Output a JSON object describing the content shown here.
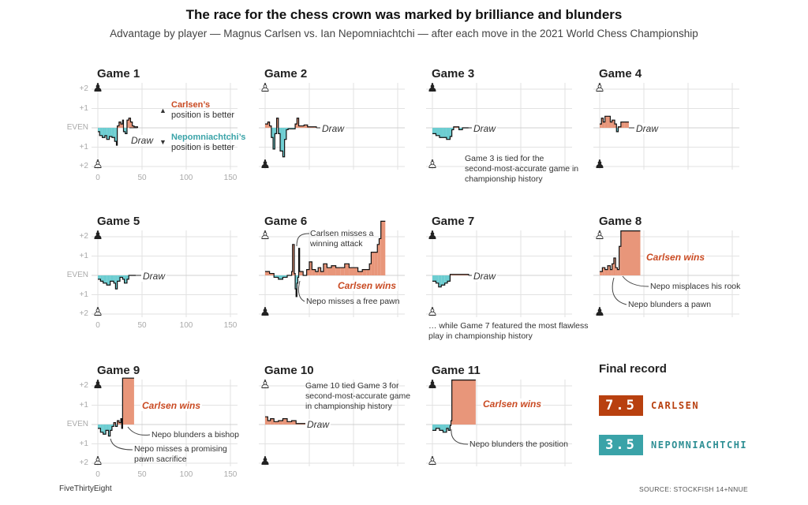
{
  "title": "The race for the chess crown was marked by brilliance and blunders",
  "subtitle": "Advantage by player — Magnus Carlsen vs. Ian Nepomniachtchi — after each move in the 2021 World Chess Championship",
  "legend": {
    "carlsen_name": "Carlsen’s",
    "carlsen_text": "position is better",
    "nepo_name": "Nepomniachtchi’s",
    "nepo_text": "position is better",
    "up_icon": "triangle-up-icon",
    "down_icon": "triangle-down-icon"
  },
  "colors": {
    "carlsen": "#e8967a",
    "carlsen_text": "#c94a22",
    "nepo": "#6ccdd1",
    "nepo_text": "#3aa3a8",
    "record_carlsen": "#b8400f",
    "record_nepo": "#3aa3a8"
  },
  "axis": {
    "y_ticks": [
      "+2",
      "+1",
      "EVEN",
      "+1",
      "+2"
    ],
    "x_ticks": [
      "0",
      "50",
      "100",
      "150"
    ]
  },
  "chart_data": {
    "type": "area",
    "xlabel": "",
    "ylabel": "",
    "xlim": [
      0,
      158
    ],
    "ylim": [
      -2,
      2
    ],
    "grid": true,
    "games": [
      {
        "title": "Game 1",
        "top_pawn": "black",
        "result": "Draw",
        "values": [
          [
            0,
            -0.2
          ],
          [
            2,
            -0.4
          ],
          [
            5,
            -0.5
          ],
          [
            8,
            -0.4
          ],
          [
            10,
            -0.6
          ],
          [
            13,
            -0.45
          ],
          [
            16,
            -0.5
          ],
          [
            19,
            -0.7
          ],
          [
            21,
            -0.9
          ],
          [
            22,
            0.1
          ],
          [
            24,
            0.3
          ],
          [
            26,
            0.2
          ],
          [
            28,
            0.4
          ],
          [
            29,
            -0.2
          ],
          [
            31,
            -0.3
          ],
          [
            33,
            0.4
          ],
          [
            35,
            0.5
          ],
          [
            37,
            0.3
          ],
          [
            39,
            0.1
          ],
          [
            41,
            0.05
          ],
          [
            45,
            0
          ]
        ]
      },
      {
        "title": "Game 2",
        "top_pawn": "white",
        "result": "Draw",
        "values": [
          [
            0,
            0.2
          ],
          [
            3,
            0.3
          ],
          [
            5,
            0.1
          ],
          [
            7,
            -0.5
          ],
          [
            9,
            -1.1
          ],
          [
            11,
            -0.3
          ],
          [
            13,
            0.5
          ],
          [
            15,
            -0.3
          ],
          [
            17,
            -1.2
          ],
          [
            20,
            -1.5
          ],
          [
            22,
            -0.6
          ],
          [
            24,
            -0.1
          ],
          [
            26,
            -0.05
          ],
          [
            34,
            0.2
          ],
          [
            36,
            0.5
          ],
          [
            38,
            0.1
          ],
          [
            44,
            0.15
          ],
          [
            48,
            0.05
          ],
          [
            58,
            0
          ]
        ]
      },
      {
        "title": "Game 3",
        "top_pawn": "black",
        "result": "Draw",
        "note": "Game 3 is tied for the\nsecond-most-accurate game in\nchampionship history",
        "values": [
          [
            0,
            -0.3
          ],
          [
            4,
            -0.4
          ],
          [
            8,
            -0.5
          ],
          [
            12,
            -0.5
          ],
          [
            16,
            -0.6
          ],
          [
            20,
            -0.45
          ],
          [
            22,
            -0.1
          ],
          [
            24,
            0.05
          ],
          [
            27,
            0.05
          ],
          [
            30,
            -0.1
          ],
          [
            34,
            0
          ],
          [
            41,
            0
          ]
        ]
      },
      {
        "title": "Game 4",
        "top_pawn": "white",
        "result": "Draw",
        "values": [
          [
            0,
            0.2
          ],
          [
            2,
            0.5
          ],
          [
            4,
            0.3
          ],
          [
            6,
            0.6
          ],
          [
            9,
            0.6
          ],
          [
            12,
            0.3
          ],
          [
            14,
            0.4
          ],
          [
            17,
            0.2
          ],
          [
            19,
            -0.2
          ],
          [
            21,
            0.05
          ],
          [
            24,
            0.3
          ],
          [
            28,
            0.3
          ],
          [
            33,
            0.3
          ]
        ]
      },
      {
        "title": "Game 5",
        "top_pawn": "black",
        "result": "Draw",
        "values": [
          [
            0,
            -0.2
          ],
          [
            3,
            -0.3
          ],
          [
            6,
            -0.4
          ],
          [
            10,
            -0.5
          ],
          [
            14,
            -0.3
          ],
          [
            18,
            -0.4
          ],
          [
            20,
            -0.7
          ],
          [
            22,
            -0.3
          ],
          [
            25,
            -0.1
          ],
          [
            28,
            -0.2
          ],
          [
            30,
            -0.4
          ],
          [
            33,
            -0.2
          ],
          [
            35,
            0
          ],
          [
            43,
            0
          ]
        ]
      },
      {
        "title": "Game 6",
        "top_pawn": "white",
        "result": "Carlsen wins",
        "note_a": "Carlsen misses a\nwinning attack",
        "note_b": "Nepo misses a free pawn",
        "values": [
          [
            0,
            0.2
          ],
          [
            5,
            0.1
          ],
          [
            10,
            -0.1
          ],
          [
            15,
            -0.2
          ],
          [
            20,
            -0.1
          ],
          [
            25,
            0
          ],
          [
            30,
            0.2
          ],
          [
            31,
            1.6
          ],
          [
            33,
            0.1
          ],
          [
            34,
            -0.7
          ],
          [
            35,
            -1.1
          ],
          [
            36,
            -0.4
          ],
          [
            37,
            -0.1
          ],
          [
            38,
            1.4
          ],
          [
            39,
            0.2
          ],
          [
            43,
            0
          ],
          [
            47,
            0.3
          ],
          [
            50,
            0.7
          ],
          [
            53,
            0.3
          ],
          [
            57,
            0.2
          ],
          [
            60,
            0.4
          ],
          [
            63,
            0.2
          ],
          [
            66,
            0.6
          ],
          [
            70,
            0.4
          ],
          [
            75,
            0.5
          ],
          [
            80,
            0.4
          ],
          [
            85,
            0.4
          ],
          [
            90,
            0.6
          ],
          [
            95,
            0.4
          ],
          [
            100,
            0.4
          ],
          [
            105,
            0.2
          ],
          [
            110,
            0.3
          ],
          [
            115,
            0.3
          ],
          [
            118,
            0.6
          ],
          [
            120,
            1.2
          ],
          [
            124,
            1.2
          ],
          [
            127,
            1.6
          ],
          [
            129,
            1.9
          ],
          [
            131,
            2.8
          ],
          [
            136,
            2.8
          ]
        ]
      },
      {
        "title": "Game 7",
        "top_pawn": "black",
        "result": "Draw",
        "note": "… while Game 7 featured the most flawless\nplay in championship history",
        "values": [
          [
            0,
            -0.3
          ],
          [
            4,
            -0.4
          ],
          [
            7,
            -0.6
          ],
          [
            10,
            -0.5
          ],
          [
            14,
            -0.4
          ],
          [
            17,
            -0.3
          ],
          [
            20,
            0.05
          ],
          [
            24,
            0.05
          ],
          [
            41,
            0
          ]
        ]
      },
      {
        "title": "Game 8",
        "top_pawn": "white",
        "result": "Carlsen wins",
        "note_a": "Nepo misplaces his rook",
        "note_b": "Nepo blunders a pawn",
        "values": [
          [
            0,
            0.2
          ],
          [
            3,
            0.4
          ],
          [
            6,
            0.3
          ],
          [
            9,
            0.5
          ],
          [
            12,
            0.3
          ],
          [
            14,
            0.6
          ],
          [
            16,
            0.9
          ],
          [
            18,
            0.4
          ],
          [
            20,
            0.3
          ],
          [
            22,
            1.5
          ],
          [
            24,
            2.3
          ],
          [
            46,
            2.3
          ]
        ]
      },
      {
        "title": "Game 9",
        "top_pawn": "black",
        "result": "Carlsen wins",
        "note_a": "Nepo blunders a bishop",
        "note_b": "Nepo misses a promising\npawn sacrifice",
        "values": [
          [
            0,
            -0.2
          ],
          [
            3,
            -0.4
          ],
          [
            6,
            -0.5
          ],
          [
            9,
            -0.3
          ],
          [
            12,
            -0.6
          ],
          [
            14,
            -0.3
          ],
          [
            16,
            -0.1
          ],
          [
            18,
            0.1
          ],
          [
            20,
            -0.1
          ],
          [
            22,
            0.2
          ],
          [
            24,
            0.1
          ],
          [
            26,
            0.3
          ],
          [
            27,
            -0.2
          ],
          [
            28,
            2.4
          ],
          [
            41,
            2.4
          ]
        ]
      },
      {
        "title": "Game 10",
        "top_pawn": "white",
        "result": "Draw",
        "note": "Game 10 tied Game 3 for\nsecond-most-accurate game\nin championship history",
        "values": [
          [
            0,
            0.4
          ],
          [
            3,
            0.2
          ],
          [
            6,
            0.3
          ],
          [
            10,
            0.15
          ],
          [
            15,
            0.2
          ],
          [
            20,
            0.3
          ],
          [
            25,
            0.15
          ],
          [
            30,
            0.2
          ],
          [
            35,
            0.05
          ],
          [
            40,
            0.05
          ],
          [
            49,
            0
          ]
        ]
      },
      {
        "title": "Game 11",
        "top_pawn": "black",
        "result": "Carlsen wins",
        "note_a": "Nepo blunders the position",
        "values": [
          [
            0,
            -0.3
          ],
          [
            4,
            -0.2
          ],
          [
            8,
            -0.3
          ],
          [
            12,
            -0.4
          ],
          [
            16,
            -0.2
          ],
          [
            18,
            -0.3
          ],
          [
            20,
            -0.05
          ],
          [
            21,
            0.2
          ],
          [
            22,
            2.3
          ],
          [
            49,
            2.3
          ]
        ]
      }
    ]
  },
  "final_record": {
    "title": "Final record",
    "carlsen_score": "7.5",
    "carlsen_name": "CARLSEN",
    "nepo_score": "3.5",
    "nepo_name": "NEPOMNIACHTCHI"
  },
  "footer": {
    "brand": "FiveThirtyEight",
    "source": "SOURCE: STOCKFISH 14+NNUE"
  }
}
